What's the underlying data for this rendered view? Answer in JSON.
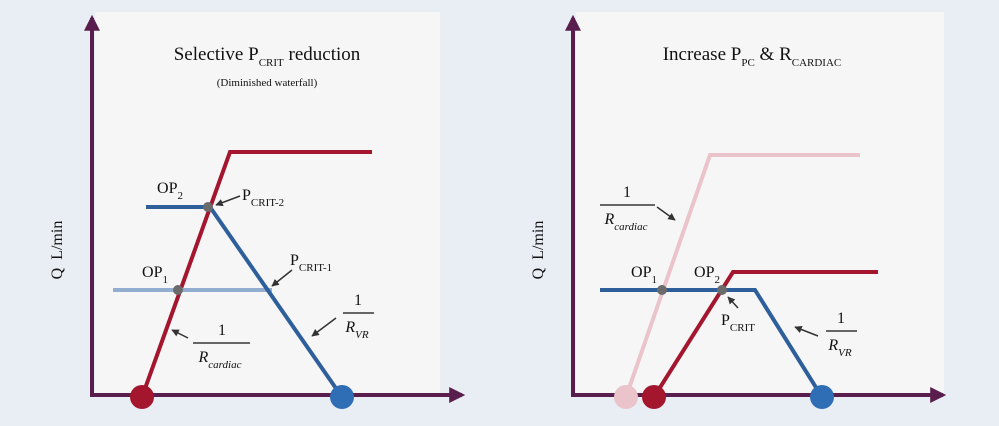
{
  "panels": [
    {
      "title": {
        "t1": "Selective P",
        "s1": "CRIT",
        "t2": " reduction"
      },
      "subtitle": "(Diminished waterfall)",
      "y_axis_label": "Q  L/min",
      "labels": {
        "op2": {
          "text": "OP",
          "sub": "2"
        },
        "pcrit2": {
          "text": "P",
          "sub": "CRIT-2"
        },
        "pcrit1": {
          "text": "P",
          "sub": "CRIT-1"
        },
        "op1": {
          "text": "OP",
          "sub": "1"
        },
        "cardiac": {
          "numerator": "1",
          "text": "R",
          "sub": "cardiac"
        },
        "vr": {
          "numerator": "1",
          "text": "R",
          "sub": "VR"
        }
      }
    },
    {
      "title": {
        "t1": "Increase P",
        "s1": "PC",
        "t2": " & R",
        "s2": "CARDIAC"
      },
      "y_axis_label": "Q  L/min",
      "labels": {
        "cardiac": {
          "numerator": "1",
          "text": "R",
          "sub": "cardiac"
        },
        "op1": {
          "text": "OP",
          "sub": "1"
        },
        "op2": {
          "text": "OP",
          "sub": "2"
        },
        "pcrit": {
          "text": "P",
          "sub": "CRIT"
        },
        "vr": {
          "numerator": "1",
          "text": "R",
          "sub": "VR"
        }
      }
    }
  ]
}
